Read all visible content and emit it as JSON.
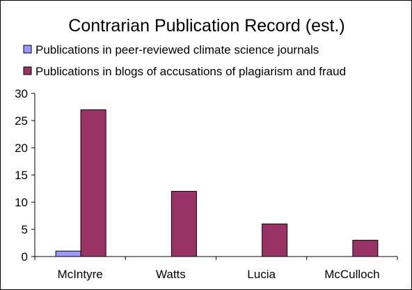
{
  "chart_data": {
    "type": "bar",
    "title": "Contrarian Publication Record (est.)",
    "xlabel": "",
    "ylabel": "",
    "categories": [
      "McIntyre",
      "Watts",
      "Lucia",
      "McCulloch"
    ],
    "series": [
      {
        "name": "Publications in peer-reviewed climate science journals",
        "color": "#9999ff",
        "values": [
          1,
          0,
          0,
          0
        ]
      },
      {
        "name": "Publications in blogs of accusations of plagiarism and fraud",
        "color": "#993366",
        "values": [
          27,
          12,
          6,
          3
        ]
      }
    ],
    "ylim": [
      0,
      30
    ],
    "yticks": [
      0,
      5,
      10,
      15,
      20,
      25,
      30
    ],
    "grid": false,
    "legend_position": "top"
  }
}
